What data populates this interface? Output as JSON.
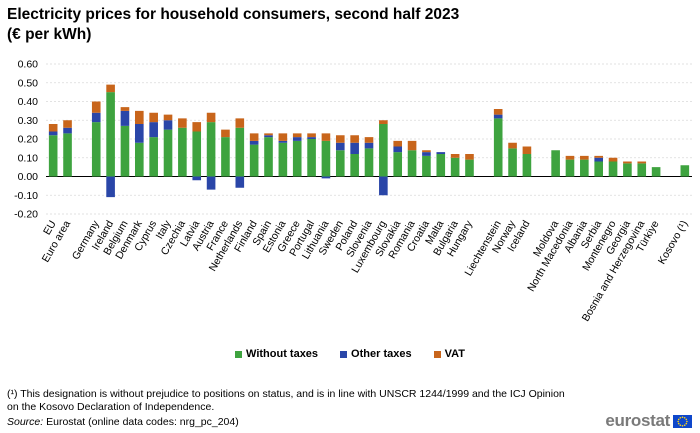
{
  "title_line1": "Electricity prices for household consumers, second half 2023",
  "title_line2": "(€ per kWh)",
  "colors": {
    "without_taxes": "#3ea33f",
    "other_taxes": "#2a46a8",
    "vat": "#c8651b",
    "grid": "#d9d9d9",
    "axis": "#000000"
  },
  "legend": {
    "without_taxes": "Without taxes",
    "other_taxes": "Other taxes",
    "vat": "VAT"
  },
  "footnote": "(¹) This designation is without prejudice to positions on status, and is in line with UNSCR 1244/1999 and the ICJ Opinion on the Kosovo Declaration of Independence.",
  "source_label": "Source:",
  "source_text": "Eurostat (online data codes: nrg_pc_204)",
  "logo_text": "eurostat",
  "chart_data": {
    "type": "bar",
    "stacked": true,
    "title": "Electricity prices for household consumers, second half 2023 (€ per kWh)",
    "ylim": [
      -0.2,
      0.6
    ],
    "yticks": [
      -0.2,
      -0.1,
      0.0,
      0.1,
      0.2,
      0.3,
      0.4,
      0.5,
      0.6
    ],
    "ytick_labels": [
      "-0.20",
      "-0.10",
      "0.00",
      "0.10",
      "0.20",
      "0.30",
      "0.40",
      "0.50",
      "0.60"
    ],
    "grid": true,
    "legend_position": "bottom",
    "categories": [
      "EU",
      "Euro area",
      "",
      "Germany",
      "Ireland",
      "Belgium",
      "Denmark",
      "Cyprus",
      "Italy",
      "Czechia",
      "Latvia",
      "Austria",
      "France",
      "Netherlands",
      "Finland",
      "Spain",
      "Estonia",
      "Greece",
      "Portugal",
      "Lithuania",
      "Sweden",
      "Poland",
      "Slovenia",
      "Luxembourg",
      "Slovakia",
      "Romania",
      "Croatia",
      "Malta",
      "Bulgaria",
      "Hungary",
      "",
      "Liechtenstein",
      "Norway",
      "Iceland",
      "",
      "Moldova",
      "North Macedonia",
      "Albania",
      "Serbia",
      "Montenegro",
      "Georgia",
      "Bosnia and Herzegovina",
      "Türkiye",
      "",
      "Kosovo (¹)"
    ],
    "series": [
      {
        "name": "Without taxes",
        "values": [
          0.22,
          0.23,
          null,
          0.29,
          0.45,
          0.27,
          0.18,
          0.21,
          0.25,
          0.26,
          0.24,
          0.29,
          0.21,
          0.26,
          0.17,
          0.21,
          0.18,
          0.19,
          0.2,
          0.19,
          0.14,
          0.12,
          0.15,
          0.28,
          0.13,
          0.14,
          0.11,
          0.12,
          0.1,
          0.09,
          null,
          0.31,
          0.15,
          0.12,
          null,
          0.14,
          0.09,
          0.09,
          0.08,
          0.08,
          0.07,
          0.07,
          0.05,
          null,
          0.06
        ]
      },
      {
        "name": "Other taxes",
        "values": [
          0.02,
          0.03,
          null,
          0.05,
          -0.11,
          0.08,
          0.1,
          0.08,
          0.05,
          0.0,
          -0.02,
          -0.07,
          0.0,
          -0.06,
          0.02,
          0.01,
          0.01,
          0.02,
          0.01,
          -0.01,
          0.04,
          0.06,
          0.03,
          -0.1,
          0.03,
          0.0,
          0.02,
          0.01,
          0.0,
          0.0,
          null,
          0.02,
          0.0,
          0.0,
          null,
          0.0,
          0.0,
          0.0,
          0.02,
          0.0,
          0.0,
          0.0,
          0.0,
          null,
          0.0
        ]
      },
      {
        "name": "VAT",
        "values": [
          0.04,
          0.04,
          null,
          0.06,
          0.04,
          0.02,
          0.07,
          0.05,
          0.03,
          0.05,
          0.05,
          0.05,
          0.04,
          0.05,
          0.04,
          0.01,
          0.04,
          0.02,
          0.02,
          0.04,
          0.04,
          0.04,
          0.03,
          0.02,
          0.03,
          0.05,
          0.01,
          0.0,
          0.02,
          0.03,
          null,
          0.03,
          0.03,
          0.04,
          null,
          0.0,
          0.02,
          0.02,
          0.01,
          0.02,
          0.01,
          0.01,
          0.0,
          null,
          0.0
        ]
      }
    ]
  }
}
